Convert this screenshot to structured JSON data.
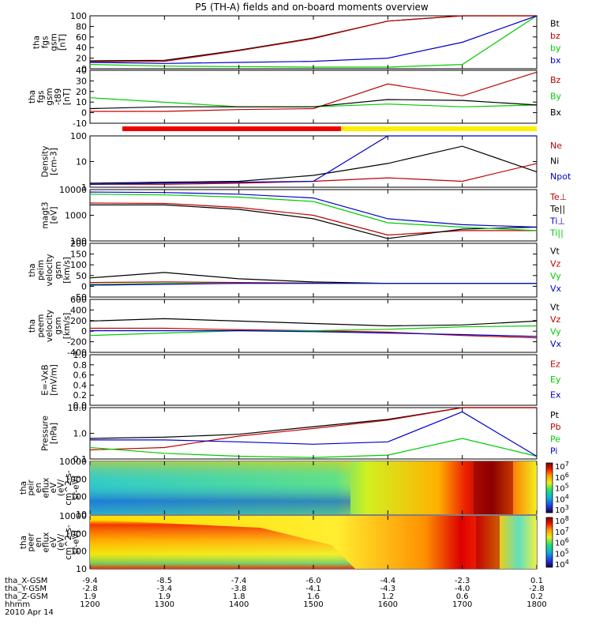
{
  "title": "P5 (TH-A) fields and on-board moments overview",
  "colors": {
    "black": "#000000",
    "red": "#c00000",
    "green": "#00cc00",
    "blue": "#0000cc",
    "yellow": "#ffee00",
    "bar_red": "#ee0000"
  },
  "panels": [
    {
      "id": "fgs-mag",
      "ylabel": [
        "tha",
        "fgs",
        "gsm",
        "[nT]"
      ],
      "yticks": [
        "0",
        "20",
        "40",
        "60",
        "80",
        "100"
      ],
      "ylim": [
        0,
        100
      ],
      "legend": [
        {
          "text": "Bt",
          "color": "black"
        },
        {
          "text": "bz",
          "color": "red"
        },
        {
          "text": "by",
          "color": "green"
        },
        {
          "text": "bx",
          "color": "blue"
        }
      ]
    },
    {
      "id": "fgs-gse",
      "ylabel": [
        "tha",
        "fgs",
        "gsm",
        "-t89",
        "[nT]"
      ],
      "yticks": [
        "-10",
        "0",
        "10",
        "20",
        "30",
        "40"
      ],
      "ylim": [
        -18,
        40
      ],
      "legend": [
        {
          "text": "Bz",
          "color": "red"
        },
        {
          "text": "By",
          "color": "green"
        },
        {
          "text": "Bx",
          "color": "black"
        }
      ]
    },
    {
      "id": "density",
      "ylabel": [
        "Density",
        "[cm-3]"
      ],
      "yticks": [
        "1",
        "10",
        "100"
      ],
      "ylim": [
        0.5,
        200
      ],
      "log": true,
      "legend": [
        {
          "text": "Ne",
          "color": "red"
        },
        {
          "text": "Ni",
          "color": "black"
        },
        {
          "text": "Npot",
          "color": "blue"
        }
      ]
    },
    {
      "id": "temperature",
      "ylabel": [
        "magt3",
        "[eV]"
      ],
      "yticks": [
        "100",
        "1000",
        "10000"
      ],
      "ylim": [
        30,
        12000
      ],
      "log": true,
      "legend": [
        {
          "text": "Te⊥",
          "color": "red"
        },
        {
          "text": "Te||",
          "color": "black"
        },
        {
          "text": "Ti⊥",
          "color": "blue"
        },
        {
          "text": "Ti||",
          "color": "green"
        }
      ]
    },
    {
      "id": "peim-velocity",
      "ylabel": [
        "tha",
        "peim",
        "velocity",
        "gsm",
        "[km/s]"
      ],
      "yticks": [
        "-50",
        "0",
        "50",
        "100",
        "150",
        "200"
      ],
      "ylim": [
        -75,
        220
      ],
      "legend": [
        {
          "text": "Vt",
          "color": "black"
        },
        {
          "text": "Vz",
          "color": "red"
        },
        {
          "text": "Vy",
          "color": "green"
        },
        {
          "text": "Vx",
          "color": "blue"
        }
      ]
    },
    {
      "id": "peem-velocity",
      "ylabel": [
        "tha",
        "peem",
        "velocity",
        "gsm",
        "[km/s]"
      ],
      "yticks": [
        "-400",
        "-200",
        "0",
        "200",
        "400",
        "600"
      ],
      "ylim": [
        -450,
        650
      ],
      "legend": [
        {
          "text": "Vt",
          "color": "black"
        },
        {
          "text": "Vz",
          "color": "red"
        },
        {
          "text": "Vy",
          "color": "green"
        },
        {
          "text": "Vx",
          "color": "blue"
        }
      ]
    },
    {
      "id": "efield",
      "ylabel": [
        "E=-VxB",
        "[mV/m]"
      ],
      "yticks": [
        "0.0",
        "0.2",
        "0.4",
        "0.6",
        "0.8",
        "1.0"
      ],
      "ylim": [
        0,
        1
      ],
      "legend": [
        {
          "text": "Ez",
          "color": "red"
        },
        {
          "text": "Ey",
          "color": "green"
        },
        {
          "text": "Ex",
          "color": "blue"
        }
      ]
    },
    {
      "id": "pressure",
      "ylabel": [
        "Pressure",
        "[nPa]"
      ],
      "yticks": [
        "0.1",
        "1.0",
        "10.0"
      ],
      "ylim": [
        0.05,
        25
      ],
      "log": true,
      "legend": [
        {
          "text": "Pt",
          "color": "black"
        },
        {
          "text": "Pb",
          "color": "red"
        },
        {
          "text": "Pe",
          "color": "green"
        },
        {
          "text": "Pi",
          "color": "blue"
        }
      ]
    },
    {
      "id": "peir-spectrogram",
      "ylabel": [
        "tha",
        "peir",
        "en",
        "eflux",
        "eV",
        "(eV/",
        "cm^2-s-",
        "sr-eV)"
      ],
      "yticks": [
        "10",
        "100",
        "1000",
        "10000"
      ],
      "cbar_ticks": [
        "10^3",
        "10^4",
        "10^5",
        "10^6",
        "10^7"
      ]
    },
    {
      "id": "peer-spectrogram",
      "ylabel": [
        "tha",
        "peer",
        "en",
        "eflux",
        "eV",
        "(eV/",
        "cm^2-s-",
        "sr-eV)"
      ],
      "yticks": [
        "10",
        "100",
        "1000",
        "10000"
      ],
      "cbar_ticks": [
        "10^4",
        "10^5",
        "10^6",
        "10^7",
        "10^8"
      ]
    }
  ],
  "xaxis": {
    "row_labels": [
      "tha_X-GSM",
      "tha_Y-GSM",
      "tha_Z-GSM",
      "hhmm",
      "2010 Apr 14"
    ],
    "ticks": [
      {
        "x": "-9.4",
        "y": "-2.8",
        "z": "1.9",
        "t": "1200"
      },
      {
        "x": "-8.5",
        "y": "-3.4",
        "z": "1.9",
        "t": "1300"
      },
      {
        "x": "-7.4",
        "y": "-3.8",
        "z": "1.8",
        "t": "1400"
      },
      {
        "x": "-6.0",
        "y": "-4.1",
        "z": "1.6",
        "t": "1500"
      },
      {
        "x": "-4.4",
        "y": "-4.3",
        "z": "1.2",
        "t": "1600"
      },
      {
        "x": "-2.3",
        "y": "-4.0",
        "z": "0.6",
        "t": "1700"
      },
      {
        "x": "0.1",
        "y": "-2.8",
        "z": "0.2",
        "t": "1800"
      }
    ]
  },
  "chart_data": {
    "type": "line",
    "title": "P5 (TH-A) fields and on-board moments overview",
    "xlabel": "hhmm",
    "x": [
      "1200",
      "1300",
      "1400",
      "1500",
      "1600",
      "1700",
      "1800"
    ],
    "xlim": [
      1200,
      1800
    ],
    "mode_bar": [
      {
        "from": "1200",
        "to": "1530",
        "state": "red"
      },
      {
        "from": "1530",
        "to": "1800",
        "state": "yellow"
      }
    ],
    "panels": [
      {
        "ylabel": "tha fgs gsm [nT]",
        "ylim": [
          0,
          100
        ],
        "series": [
          {
            "name": "Bt",
            "values": [
              15,
              16,
              35,
              58,
              90,
              100,
              100
            ]
          },
          {
            "name": "bz",
            "values": [
              13,
              14,
              34,
              57,
              90,
              100,
              100
            ]
          },
          {
            "name": "by",
            "values": [
              8,
              5,
              4,
              3,
              3,
              8,
              100
            ]
          },
          {
            "name": "bx",
            "values": [
              12,
              10,
              12,
              14,
              20,
              50,
              100
            ]
          }
        ]
      },
      {
        "ylabel": "tha fgs gsm-t89 [nT]",
        "ylim": [
          -18,
          40
        ],
        "series": [
          {
            "name": "Bz",
            "values": [
              -5,
              -5,
              -3,
              -2,
              25,
              12,
              38
            ]
          },
          {
            "name": "By",
            "values": [
              10,
              5,
              0,
              0,
              3,
              0,
              2
            ]
          },
          {
            "name": "Bx",
            "values": [
              -2,
              0,
              0,
              0,
              8,
              7,
              2
            ]
          }
        ]
      },
      {
        "ylabel": "Density [cm-3]",
        "ylim": [
          0.5,
          200
        ],
        "log": true,
        "series": [
          {
            "name": "Ne",
            "values": [
              0.7,
              0.7,
              0.8,
              1.0,
              1.5,
              1.0,
              8
            ]
          },
          {
            "name": "Ni",
            "values": [
              0.8,
              0.9,
              1.0,
              2.0,
              8,
              60,
              3
            ]
          },
          {
            "name": "Npot",
            "values": [
              0.7,
              0.8,
              0.9,
              1.0,
              200,
              200,
              200
            ]
          }
        ]
      },
      {
        "ylabel": "magt3 [eV]",
        "ylim": [
          30,
          12000
        ],
        "log": true,
        "series": [
          {
            "name": "Te⊥",
            "values": [
              2500,
              2400,
              1500,
              600,
              60,
              100,
              100
            ]
          },
          {
            "name": "Te||",
            "values": [
              2000,
              2000,
              1200,
              400,
              40,
              120,
              150
            ]
          },
          {
            "name": "Ti⊥",
            "values": [
              9000,
              8500,
              7000,
              4500,
              400,
              200,
              150
            ]
          },
          {
            "name": "Ti||",
            "values": [
              7000,
              6500,
              5000,
              3000,
              250,
              150,
              100
            ]
          }
        ]
      },
      {
        "ylabel": "tha peim velocity gsm [km/s]",
        "ylim": [
          -75,
          220
        ],
        "series": [
          {
            "name": "Vt",
            "values": [
              30,
              60,
              25,
              8,
              0,
              0,
              0
            ]
          },
          {
            "name": "Vz",
            "values": [
              5,
              8,
              5,
              2,
              0,
              0,
              0
            ]
          },
          {
            "name": "Vy",
            "values": [
              -5,
              0,
              0,
              0,
              0,
              0,
              0
            ]
          },
          {
            "name": "Vx",
            "values": [
              -10,
              -5,
              0,
              0,
              0,
              0,
              0
            ]
          }
        ]
      },
      {
        "ylabel": "tha peem velocity gsm [km/s]",
        "ylim": [
          -450,
          650
        ],
        "series": [
          {
            "name": "Vt",
            "values": [
              200,
              250,
              200,
              150,
              100,
              120,
              200
            ]
          },
          {
            "name": "Vz",
            "values": [
              50,
              50,
              20,
              0,
              -30,
              -100,
              -150
            ]
          },
          {
            "name": "Vy",
            "values": [
              -100,
              -50,
              0,
              0,
              30,
              80,
              100
            ]
          },
          {
            "name": "Vx",
            "values": [
              0,
              0,
              0,
              -20,
              -50,
              -80,
              -120
            ]
          }
        ]
      },
      {
        "ylabel": "E=-VxB [mV/m]",
        "ylim": [
          0,
          1
        ],
        "series": []
      },
      {
        "ylabel": "Pressure [nPa]",
        "ylim": [
          0.05,
          25
        ],
        "log": true,
        "series": [
          {
            "name": "Pt",
            "values": [
              0.6,
              0.7,
              1.0,
              2.5,
              6,
              25,
              25
            ]
          },
          {
            "name": "Pb",
            "values": [
              0.15,
              0.2,
              0.8,
              2.0,
              5.5,
              25,
              25
            ]
          },
          {
            "name": "Pe",
            "values": [
              0.2,
              0.1,
              0.07,
              0.06,
              0.08,
              0.6,
              0.07
            ]
          },
          {
            "name": "Pi",
            "values": [
              0.5,
              0.5,
              0.4,
              0.3,
              0.4,
              15,
              0.07
            ]
          }
        ]
      },
      {
        "ylabel": "tha peir en eflux eV",
        "type": "heatmap",
        "zlim": [
          "10^3",
          "10^7"
        ]
      },
      {
        "ylabel": "tha peer en eflux eV",
        "type": "heatmap",
        "zlim": [
          "10^4",
          "10^8"
        ]
      }
    ]
  }
}
